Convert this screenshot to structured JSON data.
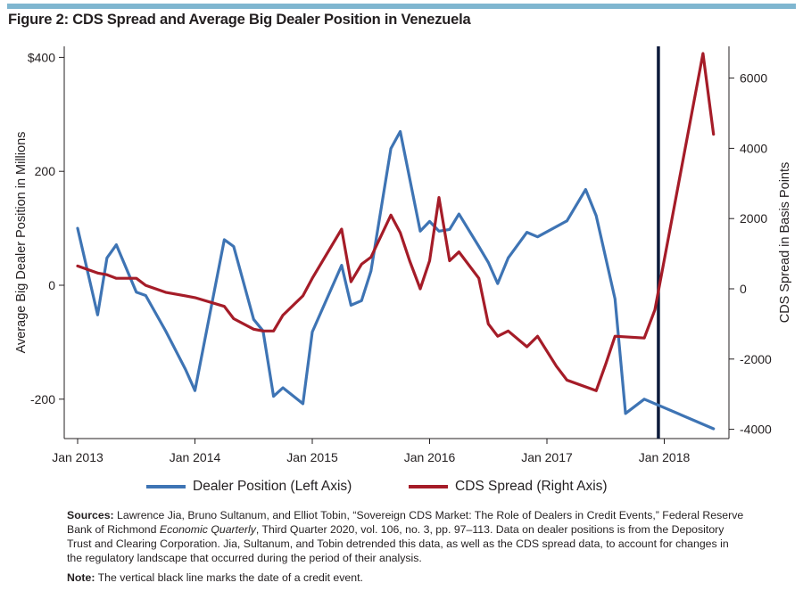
{
  "figure_title": "Figure 2: CDS Spread and Average Big Dealer Position in Venezuela",
  "colors": {
    "dealer": "#3e74b4",
    "cds": "#a51c28",
    "event_line": "#0d1a3a",
    "top_bar": "#7fb6d0"
  },
  "chart_data": {
    "type": "line",
    "title": "CDS Spread and Average Big Dealer Position in Venezuela",
    "ylabel_left": "Average Big Dealer Position in Millions",
    "ylabel_right": "CDS Spread in Basis Points",
    "xlim": [
      2013.0,
      2018.5
    ],
    "ylim_left": [
      -270,
      410
    ],
    "ylim_right": [
      -4250,
      6900
    ],
    "x_ticks": [
      {
        "value": 2013,
        "label": "Jan 2013"
      },
      {
        "value": 2014,
        "label": "Jan 2014"
      },
      {
        "value": 2015,
        "label": "Jan 2015"
      },
      {
        "value": 2016,
        "label": "Jan 2016"
      },
      {
        "value": 2017,
        "label": "Jan 2017"
      },
      {
        "value": 2018,
        "label": "Jan 2018"
      }
    ],
    "y_ticks_left": [
      {
        "value": 400,
        "label": "$400"
      },
      {
        "value": 200,
        "label": "200"
      },
      {
        "value": 0,
        "label": "0"
      },
      {
        "value": -200,
        "label": "-200"
      }
    ],
    "y_ticks_right": [
      {
        "value": 6000,
        "label": "6000"
      },
      {
        "value": 4000,
        "label": "4000"
      },
      {
        "value": 2000,
        "label": "2000"
      },
      {
        "value": 0,
        "label": "0"
      },
      {
        "value": -2000,
        "label": "-2000"
      },
      {
        "value": -4000,
        "label": "-4000"
      }
    ],
    "event_x": 2017.95,
    "series": [
      {
        "name": "Dealer Position (Left Axis)",
        "axis": "left",
        "color": "#3e74b4",
        "x": [
          2013.0,
          2013.17,
          2013.25,
          2013.33,
          2013.5,
          2013.58,
          2013.75,
          2013.92,
          2014.0,
          2014.25,
          2014.33,
          2014.5,
          2014.58,
          2014.67,
          2014.75,
          2014.92,
          2015.0,
          2015.25,
          2015.33,
          2015.42,
          2015.5,
          2015.67,
          2015.75,
          2015.92,
          2016.0,
          2016.08,
          2016.17,
          2016.25,
          2016.42,
          2016.5,
          2016.58,
          2016.67,
          2016.83,
          2016.92,
          2017.17,
          2017.33,
          2017.42,
          2017.58,
          2017.67,
          2017.83,
          2018.42
        ],
        "values": [
          100,
          -52,
          48,
          71,
          -12,
          -18,
          -80,
          -148,
          -185,
          80,
          68,
          -60,
          -80,
          -195,
          -180,
          -208,
          -82,
          35,
          -35,
          -27,
          25,
          240,
          270,
          95,
          112,
          95,
          98,
          125,
          68,
          40,
          3,
          48,
          93,
          85,
          113,
          168,
          122,
          -24,
          -225,
          -200,
          -252
        ]
      },
      {
        "name": "CDS Spread (Right Axis)",
        "axis": "right",
        "color": "#a51c28",
        "x": [
          2013.0,
          2013.17,
          2013.25,
          2013.33,
          2013.42,
          2013.5,
          2013.58,
          2013.75,
          2013.92,
          2014.0,
          2014.25,
          2014.33,
          2014.5,
          2014.58,
          2014.67,
          2014.75,
          2014.92,
          2015.0,
          2015.25,
          2015.33,
          2015.42,
          2015.5,
          2015.67,
          2015.75,
          2015.83,
          2015.92,
          2016.0,
          2016.08,
          2016.17,
          2016.25,
          2016.42,
          2016.5,
          2016.58,
          2016.67,
          2016.83,
          2016.92,
          2017.08,
          2017.17,
          2017.42,
          2017.5,
          2017.58,
          2017.83,
          2017.92,
          2018.33,
          2018.42
        ],
        "values": [
          650,
          450,
          400,
          300,
          300,
          300,
          100,
          -100,
          -200,
          -250,
          -500,
          -850,
          -1150,
          -1200,
          -1200,
          -750,
          -200,
          300,
          1700,
          200,
          700,
          900,
          2100,
          1600,
          800,
          0,
          800,
          2600,
          800,
          1050,
          300,
          -1000,
          -1350,
          -1200,
          -1650,
          -1350,
          -2200,
          -2600,
          -2900,
          -2150,
          -1350,
          -1400,
          -600,
          6700,
          4400
        ]
      }
    ]
  },
  "legend": {
    "dealer_label": "Dealer Position (Left Axis)",
    "cds_label": "CDS Spread (Right Axis)"
  },
  "notes": {
    "sources_label": "Sources:",
    "sources_text_1": " Lawrence Jia, Bruno Sultanum, and Elliot Tobin, “Sovereign CDS Market: The Role of Dealers in Credit Events,” Federal Reserve Bank of Richmond ",
    "sources_italic": "Economic Quarterly",
    "sources_text_2": ", Third Quarter 2020, vol. 106, no. 3, pp. 97–113. Data on dealer positions is from the Depository Trust and Clearing Corporation. Jia, Sultanum, and Tobin detrended this data, as well as the CDS spread data, to account for changes in the regulatory landscape that occurred during the period of their analysis.",
    "note_label": "Note:",
    "note_text": " The vertical black line marks the date of a credit event."
  }
}
